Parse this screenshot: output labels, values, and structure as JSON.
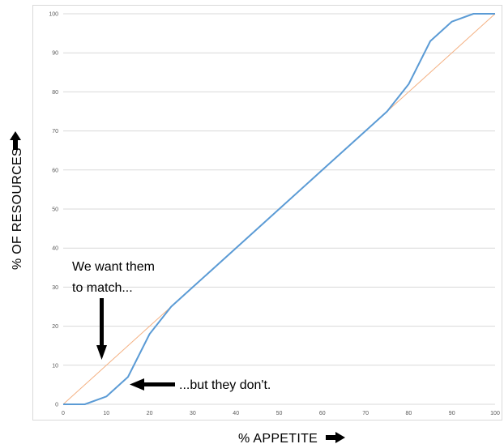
{
  "chart_data": {
    "type": "line",
    "xlabel": "% APPETITE",
    "ylabel": "% OF RESOURCES",
    "xlim": [
      0,
      100
    ],
    "ylim": [
      0,
      100
    ],
    "x_ticks": [
      0,
      10,
      20,
      30,
      40,
      50,
      60,
      70,
      80,
      90,
      100
    ],
    "y_ticks": [
      0,
      10,
      20,
      30,
      40,
      50,
      60,
      70,
      80,
      90,
      100
    ],
    "grid": "horizontal",
    "series": [
      {
        "color": "#5b9bd5",
        "x": [
          0,
          5,
          10,
          15,
          20,
          25,
          30,
          40,
          50,
          60,
          70,
          75,
          80,
          85,
          90,
          95,
          100
        ],
        "y": [
          0,
          0,
          2,
          7,
          18,
          25,
          30,
          40,
          50,
          60,
          70,
          75,
          82,
          93,
          98,
          100,
          100
        ]
      },
      {
        "color": "#f4b183",
        "x": [
          0,
          100
        ],
        "y": [
          0,
          100
        ]
      }
    ],
    "annotations": [
      {
        "lines": [
          "We want them",
          "to match..."
        ]
      },
      {
        "lines": [
          "...but they don't."
        ]
      }
    ]
  },
  "colors": {
    "grid": "#d9d9d9",
    "tick_text": "#595959",
    "arrow": "#000000"
  }
}
